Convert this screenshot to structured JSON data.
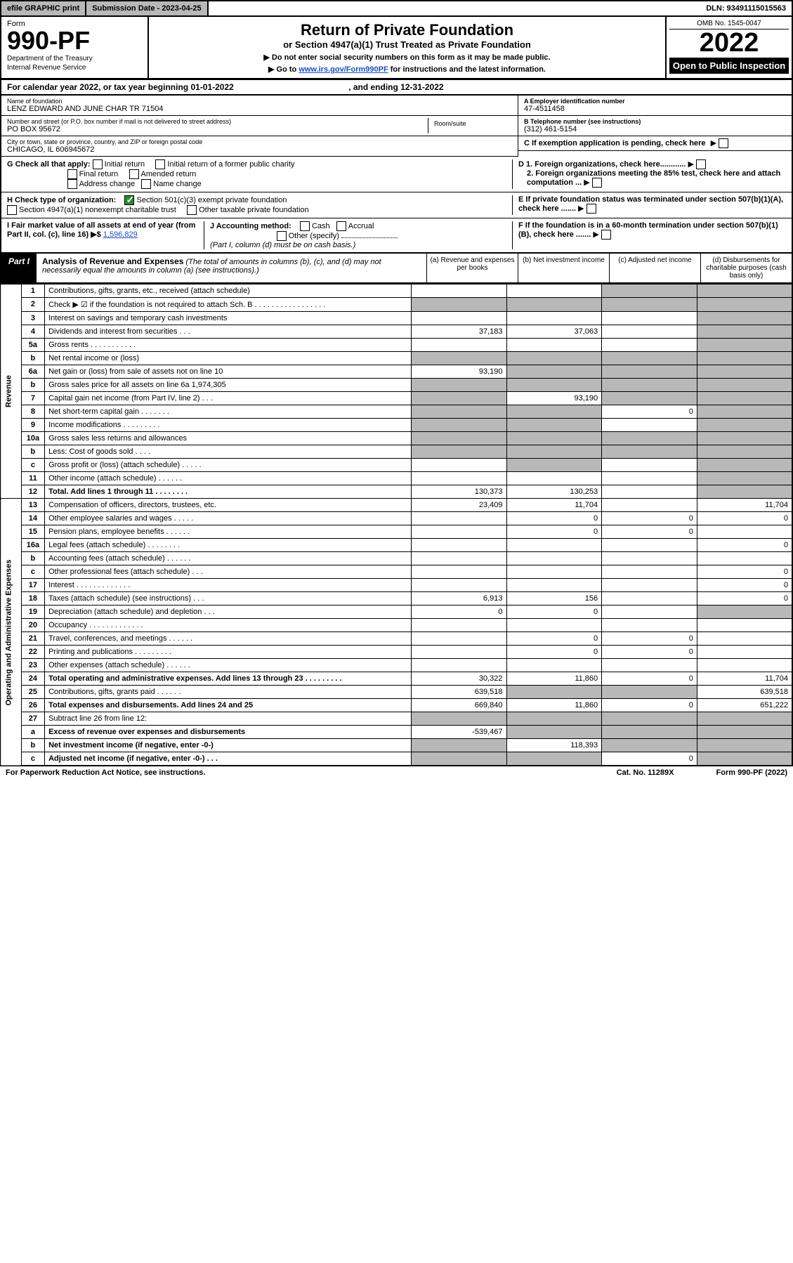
{
  "topbar": {
    "efile": "efile GRAPHIC print",
    "submission": "Submission Date - 2023-04-25",
    "dln": "DLN: 93491115015563"
  },
  "header": {
    "form_label": "Form",
    "form_num": "990-PF",
    "dept1": "Department of the Treasury",
    "dept2": "Internal Revenue Service",
    "title": "Return of Private Foundation",
    "subtitle": "or Section 4947(a)(1) Trust Treated as Private Foundation",
    "inst1": "▶ Do not enter social security numbers on this form as it may be made public.",
    "inst2": "▶ Go to ",
    "inst2_link": "www.irs.gov/Form990PF",
    "inst2_after": " for instructions and the latest information.",
    "omb": "OMB No. 1545-0047",
    "year": "2022",
    "open": "Open to Public Inspection"
  },
  "calyear": "For calendar year 2022, or tax year beginning 01-01-2022",
  "calyear_end": ", and ending 12-31-2022",
  "foundation": {
    "name_label": "Name of foundation",
    "name": "LENZ EDWARD AND JUNE CHAR TR 71504",
    "addr_label": "Number and street (or P.O. box number if mail is not delivered to street address)",
    "addr": "PO BOX 95672",
    "room_label": "Room/suite",
    "city_label": "City or town, state or province, country, and ZIP or foreign postal code",
    "city": "CHICAGO, IL  606945672",
    "ein_label": "A Employer identification number",
    "ein": "47-4511458",
    "phone_label": "B Telephone number (see instructions)",
    "phone": "(312) 461-5154",
    "c_label": "C If exemption application is pending, check here"
  },
  "g": {
    "label": "G Check all that apply:",
    "opts": [
      "Initial return",
      "Initial return of a former public charity",
      "Final return",
      "Amended return",
      "Address change",
      "Name change"
    ]
  },
  "d": {
    "d1": "D 1. Foreign organizations, check here............",
    "d2": "2. Foreign organizations meeting the 85% test, check here and attach computation ..."
  },
  "h": {
    "label": "H Check type of organization:",
    "opt1": "Section 501(c)(3) exempt private foundation",
    "opt2": "Section 4947(a)(1) nonexempt charitable trust",
    "opt3": "Other taxable private foundation"
  },
  "e": "E If private foundation status was terminated under section 507(b)(1)(A), check here .......",
  "i": {
    "label": "I Fair market value of all assets at end of year (from Part II, col. (c), line 16) ▶$  ",
    "value": "1,596,829"
  },
  "j": {
    "label": "J Accounting method:",
    "cash": "Cash",
    "accrual": "Accrual",
    "other": "Other (specify)",
    "note": "(Part I, column (d) must be on cash basis.)"
  },
  "f": "F  If the foundation is in a 60-month termination under section 507(b)(1)(B), check here .......",
  "part1": {
    "label": "Part I",
    "title": "Analysis of Revenue and Expenses",
    "note": "(The total of amounts in columns (b), (c), and (d) may not necessarily equal the amounts in column (a) (see instructions).)",
    "col_a": "(a) Revenue and expenses per books",
    "col_b": "(b) Net investment income",
    "col_c": "(c) Adjusted net income",
    "col_d": "(d) Disbursements for charitable purposes (cash basis only)"
  },
  "side_rev": "Revenue",
  "side_exp": "Operating and Administrative Expenses",
  "rows": [
    {
      "n": "1",
      "d": "Contributions, gifts, grants, etc., received (attach schedule)",
      "a": "",
      "b": "",
      "c": "shade",
      "dd": "shade"
    },
    {
      "n": "2",
      "d": "Check ▶ ☑ if the foundation is not required to attach Sch. B    .  .  .  .  .  .  .  .  .  .  .  .  .  .  .  .  .",
      "a": "shade",
      "b": "shade",
      "c": "shade",
      "dd": "shade"
    },
    {
      "n": "3",
      "d": "Interest on savings and temporary cash investments",
      "a": "",
      "b": "",
      "c": "",
      "dd": "shade"
    },
    {
      "n": "4",
      "d": "Dividends and interest from securities   .  .  .",
      "a": "37,183",
      "b": "37,063",
      "c": "",
      "dd": "shade"
    },
    {
      "n": "5a",
      "d": "Gross rents   .  .  .  .  .  .  .  .  .  .  .",
      "a": "",
      "b": "",
      "c": "",
      "dd": "shade"
    },
    {
      "n": "b",
      "d": "Net rental income or (loss)  ",
      "a": "shade",
      "b": "shade",
      "c": "shade",
      "dd": "shade"
    },
    {
      "n": "6a",
      "d": "Net gain or (loss) from sale of assets not on line 10",
      "a": "93,190",
      "b": "shade",
      "c": "shade",
      "dd": "shade"
    },
    {
      "n": "b",
      "d": "Gross sales price for all assets on line 6a          1,974,305",
      "a": "shade",
      "b": "shade",
      "c": "shade",
      "dd": "shade"
    },
    {
      "n": "7",
      "d": "Capital gain net income (from Part IV, line 2)   .  .  .",
      "a": "shade",
      "b": "93,190",
      "c": "shade",
      "dd": "shade"
    },
    {
      "n": "8",
      "d": "Net short-term capital gain   .  .  .  .  .  .  .",
      "a": "shade",
      "b": "shade",
      "c": "0",
      "dd": "shade"
    },
    {
      "n": "9",
      "d": "Income modifications .  .  .  .  .  .  .  .  .",
      "a": "shade",
      "b": "shade",
      "c": "",
      "dd": "shade"
    },
    {
      "n": "10a",
      "d": "Gross sales less returns and allowances",
      "a": "shade",
      "b": "shade",
      "c": "shade",
      "dd": "shade"
    },
    {
      "n": "b",
      "d": "Less: Cost of goods sold   .  .  .  .",
      "a": "shade",
      "b": "shade",
      "c": "shade",
      "dd": "shade"
    },
    {
      "n": "c",
      "d": "Gross profit or (loss) (attach schedule)   .  .  .  .  .",
      "a": "",
      "b": "shade",
      "c": "",
      "dd": "shade"
    },
    {
      "n": "11",
      "d": "Other income (attach schedule)   .  .  .  .  .  .",
      "a": "",
      "b": "",
      "c": "",
      "dd": "shade"
    },
    {
      "n": "12",
      "d": "Total. Add lines 1 through 11  .  .  .  .  .  .  .  .",
      "a": "130,373",
      "b": "130,253",
      "c": "",
      "dd": "shade",
      "bold": true
    }
  ],
  "exp_rows": [
    {
      "n": "13",
      "d": "Compensation of officers, directors, trustees, etc.",
      "a": "23,409",
      "b": "11,704",
      "c": "",
      "dd": "11,704"
    },
    {
      "n": "14",
      "d": "Other employee salaries and wages  .  .  .  .  .",
      "a": "",
      "b": "0",
      "c": "0",
      "dd": "0"
    },
    {
      "n": "15",
      "d": "Pension plans, employee benefits  .  .  .  .  .  .",
      "a": "",
      "b": "0",
      "c": "0",
      "dd": ""
    },
    {
      "n": "16a",
      "d": "Legal fees (attach schedule) .  .  .  .  .  .  .  .",
      "a": "",
      "b": "",
      "c": "",
      "dd": "0"
    },
    {
      "n": "b",
      "d": "Accounting fees (attach schedule) .  .  .  .  .  .",
      "a": "",
      "b": "",
      "c": "",
      "dd": ""
    },
    {
      "n": "c",
      "d": "Other professional fees (attach schedule)   .  .  .",
      "a": "",
      "b": "",
      "c": "",
      "dd": "0"
    },
    {
      "n": "17",
      "d": "Interest  .  .  .  .  .  .  .  .  .  .  .  .  .",
      "a": "",
      "b": "",
      "c": "",
      "dd": "0"
    },
    {
      "n": "18",
      "d": "Taxes (attach schedule) (see instructions)   .  .  .",
      "a": "6,913",
      "b": "156",
      "c": "",
      "dd": "0"
    },
    {
      "n": "19",
      "d": "Depreciation (attach schedule) and depletion   .  .  .",
      "a": "0",
      "b": "0",
      "c": "",
      "dd": "shade"
    },
    {
      "n": "20",
      "d": "Occupancy .  .  .  .  .  .  .  .  .  .  .  .  .",
      "a": "",
      "b": "",
      "c": "",
      "dd": ""
    },
    {
      "n": "21",
      "d": "Travel, conferences, and meetings .  .  .  .  .  .",
      "a": "",
      "b": "0",
      "c": "0",
      "dd": ""
    },
    {
      "n": "22",
      "d": "Printing and publications .  .  .  .  .  .  .  .  .",
      "a": "",
      "b": "0",
      "c": "0",
      "dd": ""
    },
    {
      "n": "23",
      "d": "Other expenses (attach schedule)  .  .  .  .  .  .",
      "a": "",
      "b": "",
      "c": "",
      "dd": ""
    },
    {
      "n": "24",
      "d": "Total operating and administrative expenses. Add lines 13 through 23   .  .  .  .  .  .  .  .  .",
      "a": "30,322",
      "b": "11,860",
      "c": "0",
      "dd": "11,704",
      "bold": true
    },
    {
      "n": "25",
      "d": "Contributions, gifts, grants paid   .  .  .  .  .  .",
      "a": "639,518",
      "b": "shade",
      "c": "shade",
      "dd": "639,518"
    },
    {
      "n": "26",
      "d": "Total expenses and disbursements. Add lines 24 and 25",
      "a": "669,840",
      "b": "11,860",
      "c": "0",
      "dd": "651,222",
      "bold": true
    },
    {
      "n": "27",
      "d": "Subtract line 26 from line 12:",
      "a": "shade",
      "b": "shade",
      "c": "shade",
      "dd": "shade"
    },
    {
      "n": "a",
      "d": "Excess of revenue over expenses and disbursements",
      "a": "-539,467",
      "b": "shade",
      "c": "shade",
      "dd": "shade",
      "bold": true
    },
    {
      "n": "b",
      "d": "Net investment income (if negative, enter -0-)",
      "a": "shade",
      "b": "118,393",
      "c": "shade",
      "dd": "shade",
      "bold": true
    },
    {
      "n": "c",
      "d": "Adjusted net income (if negative, enter -0-)   .  .  .",
      "a": "shade",
      "b": "shade",
      "c": "0",
      "dd": "shade",
      "bold": true
    }
  ],
  "footer": {
    "left": "For Paperwork Reduction Act Notice, see instructions.",
    "mid": "Cat. No. 11289X",
    "right": "Form 990-PF (2022)"
  },
  "colors": {
    "shade": "#b8b8b8",
    "link": "#1a4cc7",
    "check": "#2a8a2a"
  }
}
